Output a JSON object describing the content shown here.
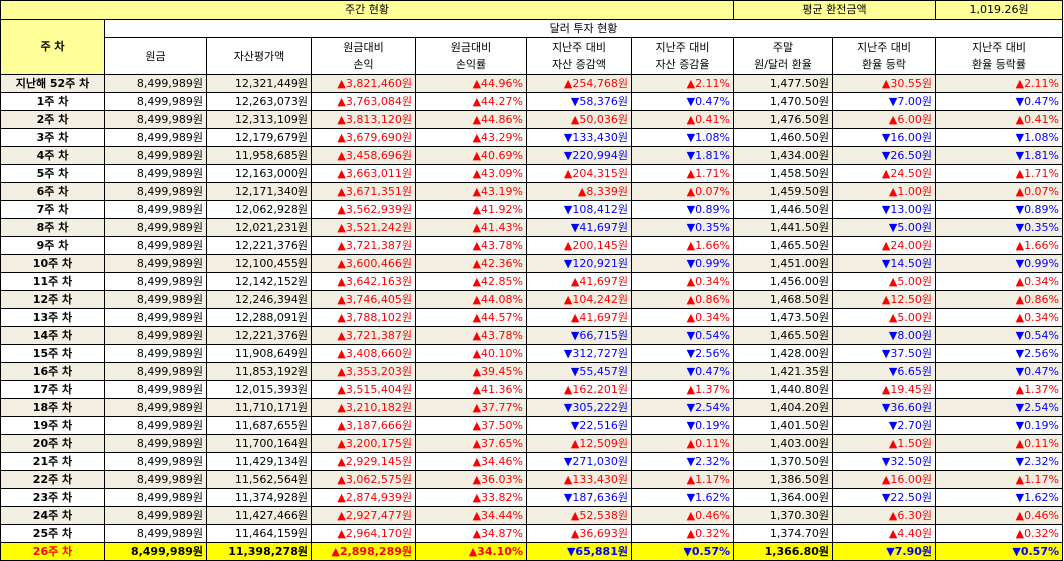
{
  "summary": {
    "weekly_title": "주간 현황",
    "avg_rate_label": "평균 환전금액",
    "avg_rate_value": "1,019.26원"
  },
  "section_title": "달러 투자 현황",
  "week_col_header": "주 차",
  "columns": [
    [
      "원금"
    ],
    [
      "자산평가액"
    ],
    [
      "원금대비",
      "손익"
    ],
    [
      "원금대비",
      "손익률"
    ],
    [
      "지난주 대비",
      "자산 증감액"
    ],
    [
      "지난주 대비",
      "자산 증감율"
    ],
    [
      "주말",
      "원/달러 환율"
    ],
    [
      "지난주 대비",
      "환율 등락"
    ],
    [
      "지난주 대비",
      "환율 등락률"
    ]
  ],
  "rows": [
    {
      "week": "지난해 52주 차",
      "principal": "8,499,989원",
      "asset": "12,321,449원",
      "pl": {
        "d": "up",
        "v": "3,821,460원"
      },
      "plr": {
        "d": "up",
        "v": "44.96%"
      },
      "chg": {
        "d": "up",
        "v": "254,768원"
      },
      "chgr": {
        "d": "up",
        "v": "2.11%"
      },
      "rate": "1,477.50원",
      "rchg": {
        "d": "up",
        "v": "30.55원"
      },
      "rchgr": {
        "d": "up",
        "v": "2.11%"
      }
    },
    {
      "week": "1주 차",
      "principal": "8,499,989원",
      "asset": "12,263,073원",
      "pl": {
        "d": "up",
        "v": "3,763,084원"
      },
      "plr": {
        "d": "up",
        "v": "44.27%"
      },
      "chg": {
        "d": "dn",
        "v": "58,376원"
      },
      "chgr": {
        "d": "dn",
        "v": "0.47%"
      },
      "rate": "1,470.50원",
      "rchg": {
        "d": "dn",
        "v": "7.00원"
      },
      "rchgr": {
        "d": "dn",
        "v": "0.47%"
      }
    },
    {
      "week": "2주 차",
      "principal": "8,499,989원",
      "asset": "12,313,109원",
      "pl": {
        "d": "up",
        "v": "3,813,120원"
      },
      "plr": {
        "d": "up",
        "v": "44.86%"
      },
      "chg": {
        "d": "up",
        "v": "50,036원"
      },
      "chgr": {
        "d": "up",
        "v": "0.41%"
      },
      "rate": "1,476.50원",
      "rchg": {
        "d": "up",
        "v": "6.00원"
      },
      "rchgr": {
        "d": "up",
        "v": "0.41%"
      }
    },
    {
      "week": "3주 차",
      "principal": "8,499,989원",
      "asset": "12,179,679원",
      "pl": {
        "d": "up",
        "v": "3,679,690원"
      },
      "plr": {
        "d": "up",
        "v": "43.29%"
      },
      "chg": {
        "d": "dn",
        "v": "133,430원"
      },
      "chgr": {
        "d": "dn",
        "v": "1.08%"
      },
      "rate": "1,460.50원",
      "rchg": {
        "d": "dn",
        "v": "16.00원"
      },
      "rchgr": {
        "d": "dn",
        "v": "1.08%"
      }
    },
    {
      "week": "4주 차",
      "principal": "8,499,989원",
      "asset": "11,958,685원",
      "pl": {
        "d": "up",
        "v": "3,458,696원"
      },
      "plr": {
        "d": "up",
        "v": "40.69%"
      },
      "chg": {
        "d": "dn",
        "v": "220,994원"
      },
      "chgr": {
        "d": "dn",
        "v": "1.81%"
      },
      "rate": "1,434.00원",
      "rchg": {
        "d": "dn",
        "v": "26.50원"
      },
      "rchgr": {
        "d": "dn",
        "v": "1.81%"
      }
    },
    {
      "week": "5주 차",
      "principal": "8,499,989원",
      "asset": "12,163,000원",
      "pl": {
        "d": "up",
        "v": "3,663,011원"
      },
      "plr": {
        "d": "up",
        "v": "43.09%"
      },
      "chg": {
        "d": "up",
        "v": "204,315원"
      },
      "chgr": {
        "d": "up",
        "v": "1.71%"
      },
      "rate": "1,458.50원",
      "rchg": {
        "d": "up",
        "v": "24.50원"
      },
      "rchgr": {
        "d": "up",
        "v": "1.71%"
      }
    },
    {
      "week": "6주 차",
      "principal": "8,499,989원",
      "asset": "12,171,340원",
      "pl": {
        "d": "up",
        "v": "3,671,351원"
      },
      "plr": {
        "d": "up",
        "v": "43.19%"
      },
      "chg": {
        "d": "up",
        "v": "8,339원"
      },
      "chgr": {
        "d": "up",
        "v": "0.07%"
      },
      "rate": "1,459.50원",
      "rchg": {
        "d": "up",
        "v": "1.00원"
      },
      "rchgr": {
        "d": "up",
        "v": "0.07%"
      }
    },
    {
      "week": "7주 차",
      "principal": "8,499,989원",
      "asset": "12,062,928원",
      "pl": {
        "d": "up",
        "v": "3,562,939원"
      },
      "plr": {
        "d": "up",
        "v": "41.92%"
      },
      "chg": {
        "d": "dn",
        "v": "108,412원"
      },
      "chgr": {
        "d": "dn",
        "v": "0.89%"
      },
      "rate": "1,446.50원",
      "rchg": {
        "d": "dn",
        "v": "13.00원"
      },
      "rchgr": {
        "d": "dn",
        "v": "0.89%"
      }
    },
    {
      "week": "8주 차",
      "principal": "8,499,989원",
      "asset": "12,021,231원",
      "pl": {
        "d": "up",
        "v": "3,521,242원"
      },
      "plr": {
        "d": "up",
        "v": "41.43%"
      },
      "chg": {
        "d": "dn",
        "v": "41,697원"
      },
      "chgr": {
        "d": "dn",
        "v": "0.35%"
      },
      "rate": "1,441.50원",
      "rchg": {
        "d": "dn",
        "v": "5.00원"
      },
      "rchgr": {
        "d": "dn",
        "v": "0.35%"
      }
    },
    {
      "week": "9주 차",
      "principal": "8,499,989원",
      "asset": "12,221,376원",
      "pl": {
        "d": "up",
        "v": "3,721,387원"
      },
      "plr": {
        "d": "up",
        "v": "43.78%"
      },
      "chg": {
        "d": "up",
        "v": "200,145원"
      },
      "chgr": {
        "d": "up",
        "v": "1.66%"
      },
      "rate": "1,465.50원",
      "rchg": {
        "d": "up",
        "v": "24.00원"
      },
      "rchgr": {
        "d": "up",
        "v": "1.66%"
      }
    },
    {
      "week": "10주 차",
      "principal": "8,499,989원",
      "asset": "12,100,455원",
      "pl": {
        "d": "up",
        "v": "3,600,466원"
      },
      "plr": {
        "d": "up",
        "v": "42.36%"
      },
      "chg": {
        "d": "dn",
        "v": "120,921원"
      },
      "chgr": {
        "d": "dn",
        "v": "0.99%"
      },
      "rate": "1,451.00원",
      "rchg": {
        "d": "dn",
        "v": "14.50원"
      },
      "rchgr": {
        "d": "dn",
        "v": "0.99%"
      }
    },
    {
      "week": "11주 차",
      "principal": "8,499,989원",
      "asset": "12,142,152원",
      "pl": {
        "d": "up",
        "v": "3,642,163원"
      },
      "plr": {
        "d": "up",
        "v": "42.85%"
      },
      "chg": {
        "d": "up",
        "v": "41,697원"
      },
      "chgr": {
        "d": "up",
        "v": "0.34%"
      },
      "rate": "1,456.00원",
      "rchg": {
        "d": "up",
        "v": "5.00원"
      },
      "rchgr": {
        "d": "up",
        "v": "0.34%"
      }
    },
    {
      "week": "12주 차",
      "principal": "8,499,989원",
      "asset": "12,246,394원",
      "pl": {
        "d": "up",
        "v": "3,746,405원"
      },
      "plr": {
        "d": "up",
        "v": "44.08%"
      },
      "chg": {
        "d": "up",
        "v": "104,242원"
      },
      "chgr": {
        "d": "up",
        "v": "0.86%"
      },
      "rate": "1,468.50원",
      "rchg": {
        "d": "up",
        "v": "12.50원"
      },
      "rchgr": {
        "d": "up",
        "v": "0.86%"
      }
    },
    {
      "week": "13주 차",
      "principal": "8,499,989원",
      "asset": "12,288,091원",
      "pl": {
        "d": "up",
        "v": "3,788,102원"
      },
      "plr": {
        "d": "up",
        "v": "44.57%"
      },
      "chg": {
        "d": "up",
        "v": "41,697원"
      },
      "chgr": {
        "d": "up",
        "v": "0.34%"
      },
      "rate": "1,473.50원",
      "rchg": {
        "d": "up",
        "v": "5.00원"
      },
      "rchgr": {
        "d": "up",
        "v": "0.34%"
      }
    },
    {
      "week": "14주 차",
      "principal": "8,499,989원",
      "asset": "12,221,376원",
      "pl": {
        "d": "up",
        "v": "3,721,387원"
      },
      "plr": {
        "d": "up",
        "v": "43.78%"
      },
      "chg": {
        "d": "dn",
        "v": "66,715원"
      },
      "chgr": {
        "d": "dn",
        "v": "0.54%"
      },
      "rate": "1,465.50원",
      "rchg": {
        "d": "dn",
        "v": "8.00원"
      },
      "rchgr": {
        "d": "dn",
        "v": "0.54%"
      }
    },
    {
      "week": "15주 차",
      "principal": "8,499,989원",
      "asset": "11,908,649원",
      "pl": {
        "d": "up",
        "v": "3,408,660원"
      },
      "plr": {
        "d": "up",
        "v": "40.10%"
      },
      "chg": {
        "d": "dn",
        "v": "312,727원"
      },
      "chgr": {
        "d": "dn",
        "v": "2.56%"
      },
      "rate": "1,428.00원",
      "rchg": {
        "d": "dn",
        "v": "37.50원"
      },
      "rchgr": {
        "d": "dn",
        "v": "2.56%"
      }
    },
    {
      "week": "16주 차",
      "principal": "8,499,989원",
      "asset": "11,853,192원",
      "pl": {
        "d": "up",
        "v": "3,353,203원"
      },
      "plr": {
        "d": "up",
        "v": "39.45%"
      },
      "chg": {
        "d": "dn",
        "v": "55,457원"
      },
      "chgr": {
        "d": "dn",
        "v": "0.47%"
      },
      "rate": "1,421.35원",
      "rchg": {
        "d": "dn",
        "v": "6.65원"
      },
      "rchgr": {
        "d": "dn",
        "v": "0.47%"
      }
    },
    {
      "week": "17주 차",
      "principal": "8,499,989원",
      "asset": "12,015,393원",
      "pl": {
        "d": "up",
        "v": "3,515,404원"
      },
      "plr": {
        "d": "up",
        "v": "41.36%"
      },
      "chg": {
        "d": "up",
        "v": "162,201원"
      },
      "chgr": {
        "d": "up",
        "v": "1.37%"
      },
      "rate": "1,440.80원",
      "rchg": {
        "d": "up",
        "v": "19.45원"
      },
      "rchgr": {
        "d": "up",
        "v": "1.37%"
      }
    },
    {
      "week": "18주 차",
      "principal": "8,499,989원",
      "asset": "11,710,171원",
      "pl": {
        "d": "up",
        "v": "3,210,182원"
      },
      "plr": {
        "d": "up",
        "v": "37.77%"
      },
      "chg": {
        "d": "dn",
        "v": "305,222원"
      },
      "chgr": {
        "d": "dn",
        "v": "2.54%"
      },
      "rate": "1,404.20원",
      "rchg": {
        "d": "dn",
        "v": "36.60원"
      },
      "rchgr": {
        "d": "dn",
        "v": "2.54%"
      }
    },
    {
      "week": "19주 차",
      "principal": "8,499,989원",
      "asset": "11,687,655원",
      "pl": {
        "d": "up",
        "v": "3,187,666원"
      },
      "plr": {
        "d": "up",
        "v": "37.50%"
      },
      "chg": {
        "d": "dn",
        "v": "22,516원"
      },
      "chgr": {
        "d": "dn",
        "v": "0.19%"
      },
      "rate": "1,401.50원",
      "rchg": {
        "d": "dn",
        "v": "2.70원"
      },
      "rchgr": {
        "d": "dn",
        "v": "0.19%"
      }
    },
    {
      "week": "20주 차",
      "principal": "8,499,989원",
      "asset": "11,700,164원",
      "pl": {
        "d": "up",
        "v": "3,200,175원"
      },
      "plr": {
        "d": "up",
        "v": "37.65%"
      },
      "chg": {
        "d": "up",
        "v": "12,509원"
      },
      "chgr": {
        "d": "up",
        "v": "0.11%"
      },
      "rate": "1,403.00원",
      "rchg": {
        "d": "up",
        "v": "1.50원"
      },
      "rchgr": {
        "d": "up",
        "v": "0.11%"
      }
    },
    {
      "week": "21주 차",
      "principal": "8,499,989원",
      "asset": "11,429,134원",
      "pl": {
        "d": "up",
        "v": "2,929,145원"
      },
      "plr": {
        "d": "up",
        "v": "34.46%"
      },
      "chg": {
        "d": "dn",
        "v": "271,030원"
      },
      "chgr": {
        "d": "dn",
        "v": "2.32%"
      },
      "rate": "1,370.50원",
      "rchg": {
        "d": "dn",
        "v": "32.50원"
      },
      "rchgr": {
        "d": "dn",
        "v": "2.32%"
      }
    },
    {
      "week": "22주 차",
      "principal": "8,499,989원",
      "asset": "11,562,564원",
      "pl": {
        "d": "up",
        "v": "3,062,575원"
      },
      "plr": {
        "d": "up",
        "v": "36.03%"
      },
      "chg": {
        "d": "up",
        "v": "133,430원"
      },
      "chgr": {
        "d": "up",
        "v": "1.17%"
      },
      "rate": "1,386.50원",
      "rchg": {
        "d": "up",
        "v": "16.00원"
      },
      "rchgr": {
        "d": "up",
        "v": "1.17%"
      }
    },
    {
      "week": "23주 차",
      "principal": "8,499,989원",
      "asset": "11,374,928원",
      "pl": {
        "d": "up",
        "v": "2,874,939원"
      },
      "plr": {
        "d": "up",
        "v": "33.82%"
      },
      "chg": {
        "d": "dn",
        "v": "187,636원"
      },
      "chgr": {
        "d": "dn",
        "v": "1.62%"
      },
      "rate": "1,364.00원",
      "rchg": {
        "d": "dn",
        "v": "22.50원"
      },
      "rchgr": {
        "d": "dn",
        "v": "1.62%"
      }
    },
    {
      "week": "24주 차",
      "principal": "8,499,989원",
      "asset": "11,427,466원",
      "pl": {
        "d": "up",
        "v": "2,927,477원"
      },
      "plr": {
        "d": "up",
        "v": "34.44%"
      },
      "chg": {
        "d": "up",
        "v": "52,538원"
      },
      "chgr": {
        "d": "up",
        "v": "0.46%"
      },
      "rate": "1,370.30원",
      "rchg": {
        "d": "up",
        "v": "6.30원"
      },
      "rchgr": {
        "d": "up",
        "v": "0.46%"
      }
    },
    {
      "week": "25주 차",
      "principal": "8,499,989원",
      "asset": "11,464,159원",
      "pl": {
        "d": "up",
        "v": "2,964,170원"
      },
      "plr": {
        "d": "up",
        "v": "34.87%"
      },
      "chg": {
        "d": "up",
        "v": "36,693원"
      },
      "chgr": {
        "d": "up",
        "v": "0.32%"
      },
      "rate": "1,374.70원",
      "rchg": {
        "d": "up",
        "v": "4.40원"
      },
      "rchgr": {
        "d": "up",
        "v": "0.32%"
      }
    },
    {
      "week": "26주 차",
      "principal": "8,499,989원",
      "asset": "11,398,278원",
      "pl": {
        "d": "up",
        "v": "2,898,289원"
      },
      "plr": {
        "d": "up",
        "v": "34.10%"
      },
      "chg": {
        "d": "dn",
        "v": "65,881원"
      },
      "chgr": {
        "d": "dn",
        "v": "0.57%"
      },
      "rate": "1,366.80원",
      "rchg": {
        "d": "dn",
        "v": "7.90원"
      },
      "rchgr": {
        "d": "dn",
        "v": "0.57%"
      }
    }
  ],
  "colors": {
    "up": "#ff0000",
    "down": "#0000ff",
    "header_bg": "#ffff99",
    "row_alt_bg": "#f2efe2",
    "current_week_bg": "#ffff00"
  },
  "glyphs": {
    "up": "▲",
    "dn": "▼"
  }
}
